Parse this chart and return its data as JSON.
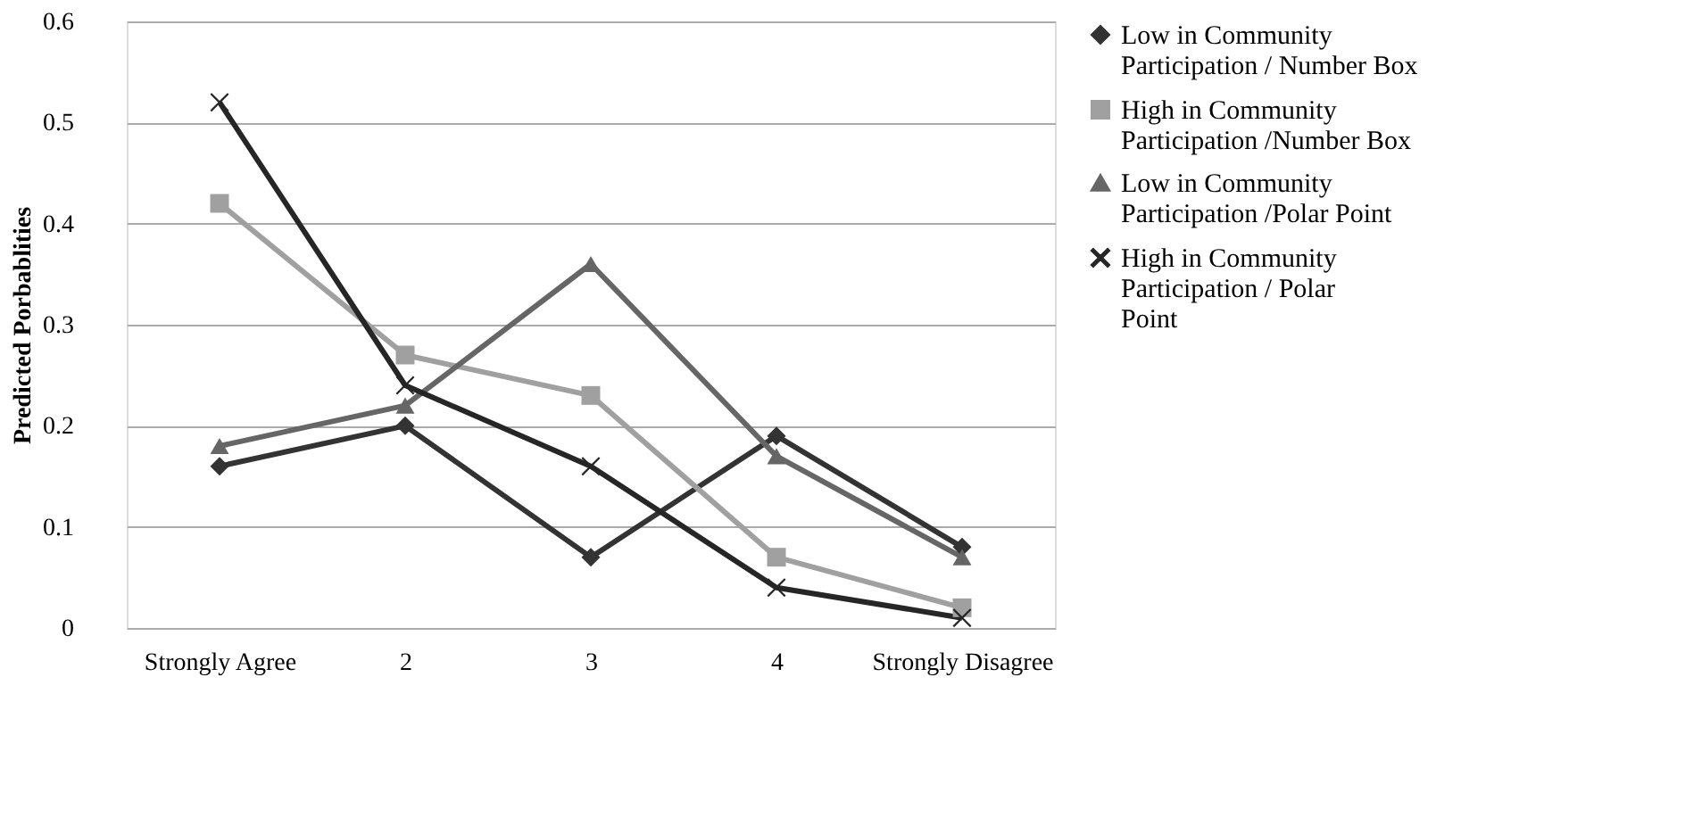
{
  "chart_data": {
    "type": "line",
    "ylabel": "Predicted Porbablities",
    "categories": [
      "Strongly Agree",
      "2",
      "3",
      "4",
      "Strongly Disagree"
    ],
    "series": [
      {
        "name": "Low in Community Participation / Number Box",
        "color": "#333333",
        "marker": "diamond",
        "values": [
          0.16,
          0.2,
          0.07,
          0.19,
          0.08
        ]
      },
      {
        "name": "High in Community Participation /Number Box",
        "color": "#a0a0a0",
        "marker": "square",
        "values": [
          0.42,
          0.27,
          0.23,
          0.07,
          0.02
        ]
      },
      {
        "name": "Low in Community Participation /Polar Point",
        "color": "#666666",
        "marker": "triangle",
        "values": [
          0.18,
          0.22,
          0.36,
          0.17,
          0.07
        ]
      },
      {
        "name": "High in Community Participation / Polar Point",
        "color": "#262626",
        "marker": "cross",
        "values": [
          0.52,
          0.24,
          0.16,
          0.04,
          0.01
        ]
      }
    ],
    "ylim": [
      0,
      0.6
    ],
    "yticks": [
      0,
      0.1,
      0.2,
      0.3,
      0.4,
      0.5,
      0.6
    ],
    "grid": "y",
    "legend": "right"
  }
}
